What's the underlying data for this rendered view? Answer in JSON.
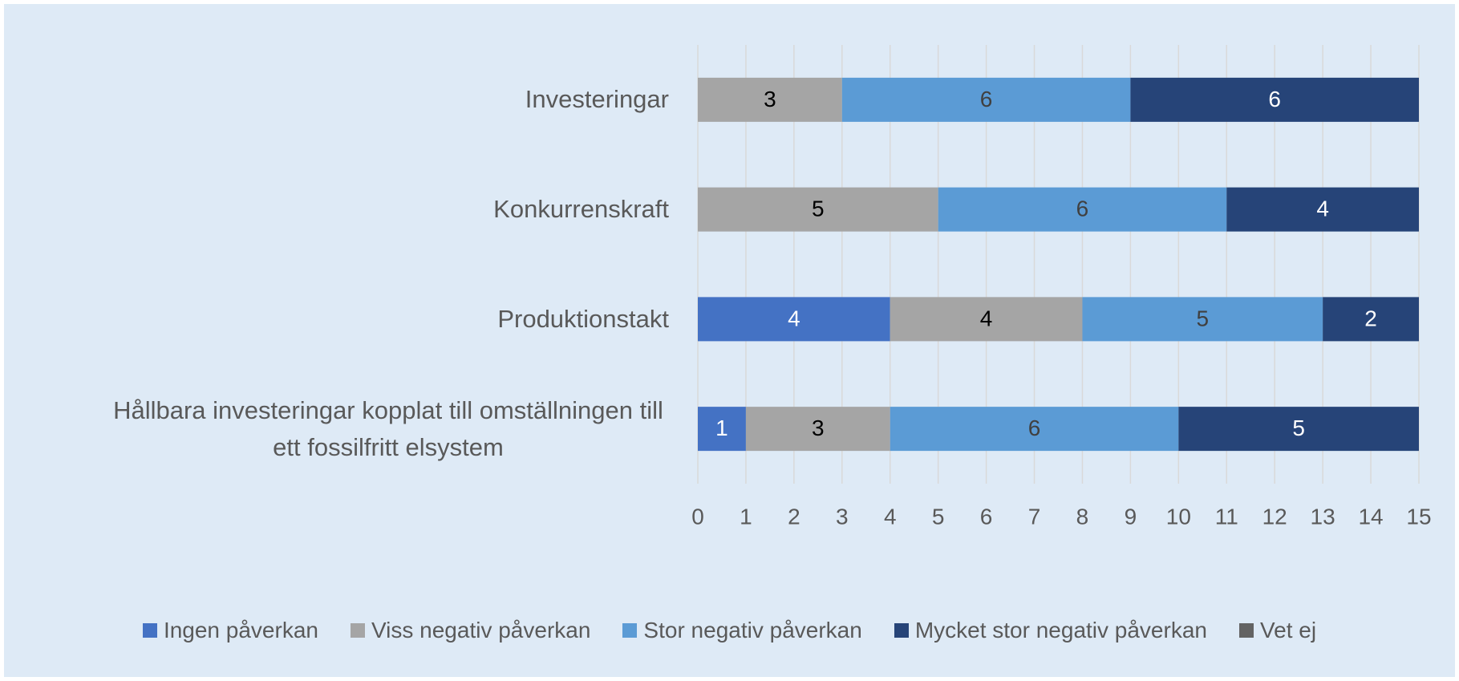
{
  "chart_data": {
    "type": "stacked_bar_horizontal",
    "categories": [
      "Investeringar",
      "Konkurrenskraft",
      "Produktionstakt",
      "Hållbara investeringar kopplat till omställningen till ett fossilfritt elsystem"
    ],
    "series": [
      {
        "name": "Ingen påverkan",
        "color": "#4472c4",
        "label_color": "#ffffff",
        "values": [
          0,
          0,
          4,
          1
        ]
      },
      {
        "name": "Viss negativ påverkan",
        "color": "#a5a5a5",
        "label_color": "#000000",
        "values": [
          3,
          5,
          4,
          3
        ]
      },
      {
        "name": "Stor negativ påverkan",
        "color": "#5b9bd5",
        "label_color": "#404040",
        "values": [
          6,
          6,
          5,
          6
        ]
      },
      {
        "name": "Mycket stor negativ påverkan",
        "color": "#264478",
        "label_color": "#ffffff",
        "values": [
          6,
          4,
          2,
          5
        ]
      },
      {
        "name": "Vet ej",
        "color": "#636363",
        "label_color": "#ffffff",
        "values": [
          0,
          0,
          0,
          0
        ]
      }
    ],
    "xlim": [
      0,
      15
    ],
    "xticks": [
      0,
      1,
      2,
      3,
      4,
      5,
      6,
      7,
      8,
      9,
      10,
      11,
      12,
      13,
      14,
      15
    ],
    "grid": true,
    "legend": "bottom"
  }
}
